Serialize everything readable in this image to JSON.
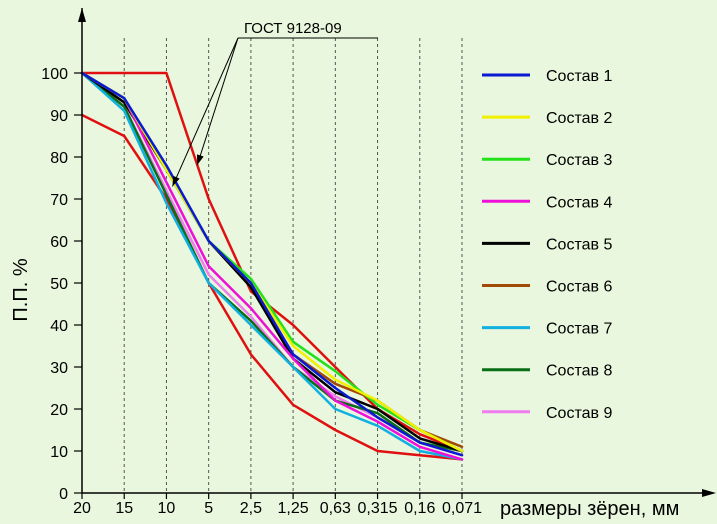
{
  "chart_data": {
    "type": "line",
    "title": "",
    "xlabel": "размеры зёрен, мм",
    "ylabel": "П.П. %",
    "ylim": [
      0,
      100
    ],
    "y_ticks": [
      0,
      10,
      20,
      30,
      40,
      50,
      60,
      70,
      80,
      90,
      100
    ],
    "categories": [
      "20",
      "15",
      "10",
      "5",
      "2,5",
      "1,25",
      "0,63",
      "0,315",
      "0,16",
      "0,071"
    ],
    "grid": "vertical-only",
    "legend_position": "right",
    "annotation": "ГОСТ 9128-09",
    "bounds": [
      {
        "values": [
          90,
          85,
          70,
          50,
          33,
          21,
          15,
          10,
          9,
          8
        ],
        "color": "#e01010"
      },
      {
        "values": [
          100,
          100,
          100,
          70,
          48,
          40,
          30,
          20,
          14,
          10
        ],
        "color": "#e01010"
      }
    ],
    "series": [
      {
        "name": "Состав 1",
        "color": "#0a1ad2",
        "values": [
          100,
          94,
          78,
          60,
          50,
          33,
          25,
          18,
          12,
          9
        ]
      },
      {
        "name": "Состав 2",
        "color": "#f0f000",
        "values": [
          100,
          94,
          77,
          60,
          50,
          35,
          27,
          22,
          15,
          10
        ]
      },
      {
        "name": "Состав 3",
        "color": "#22e01a",
        "values": [
          100,
          94,
          77,
          60,
          51,
          36,
          29,
          21,
          15,
          10
        ]
      },
      {
        "name": "Состав 4",
        "color": "#ee10d8",
        "values": [
          100,
          94,
          74,
          54,
          44,
          32,
          22,
          17,
          11,
          8
        ]
      },
      {
        "name": "Состав 5",
        "color": "#000000",
        "values": [
          100,
          93,
          77,
          60,
          49,
          32,
          24,
          20,
          13,
          10
        ]
      },
      {
        "name": "Состав 6",
        "color": "#a04a06",
        "values": [
          100,
          93,
          77,
          60,
          49,
          33,
          26,
          22,
          15,
          11
        ]
      },
      {
        "name": "Состав 7",
        "color": "#10b0e0",
        "values": [
          100,
          91,
          69,
          50,
          40,
          30,
          20,
          16,
          10,
          8
        ]
      },
      {
        "name": "Состав 8",
        "color": "#0a6e16",
        "values": [
          100,
          92,
          71,
          50,
          41,
          30,
          22,
          19,
          12,
          10
        ]
      },
      {
        "name": "Состав 9",
        "color": "#f07cf0",
        "values": [
          100,
          92,
          72,
          52,
          42,
          30,
          23,
          18,
          12,
          9
        ]
      }
    ]
  }
}
